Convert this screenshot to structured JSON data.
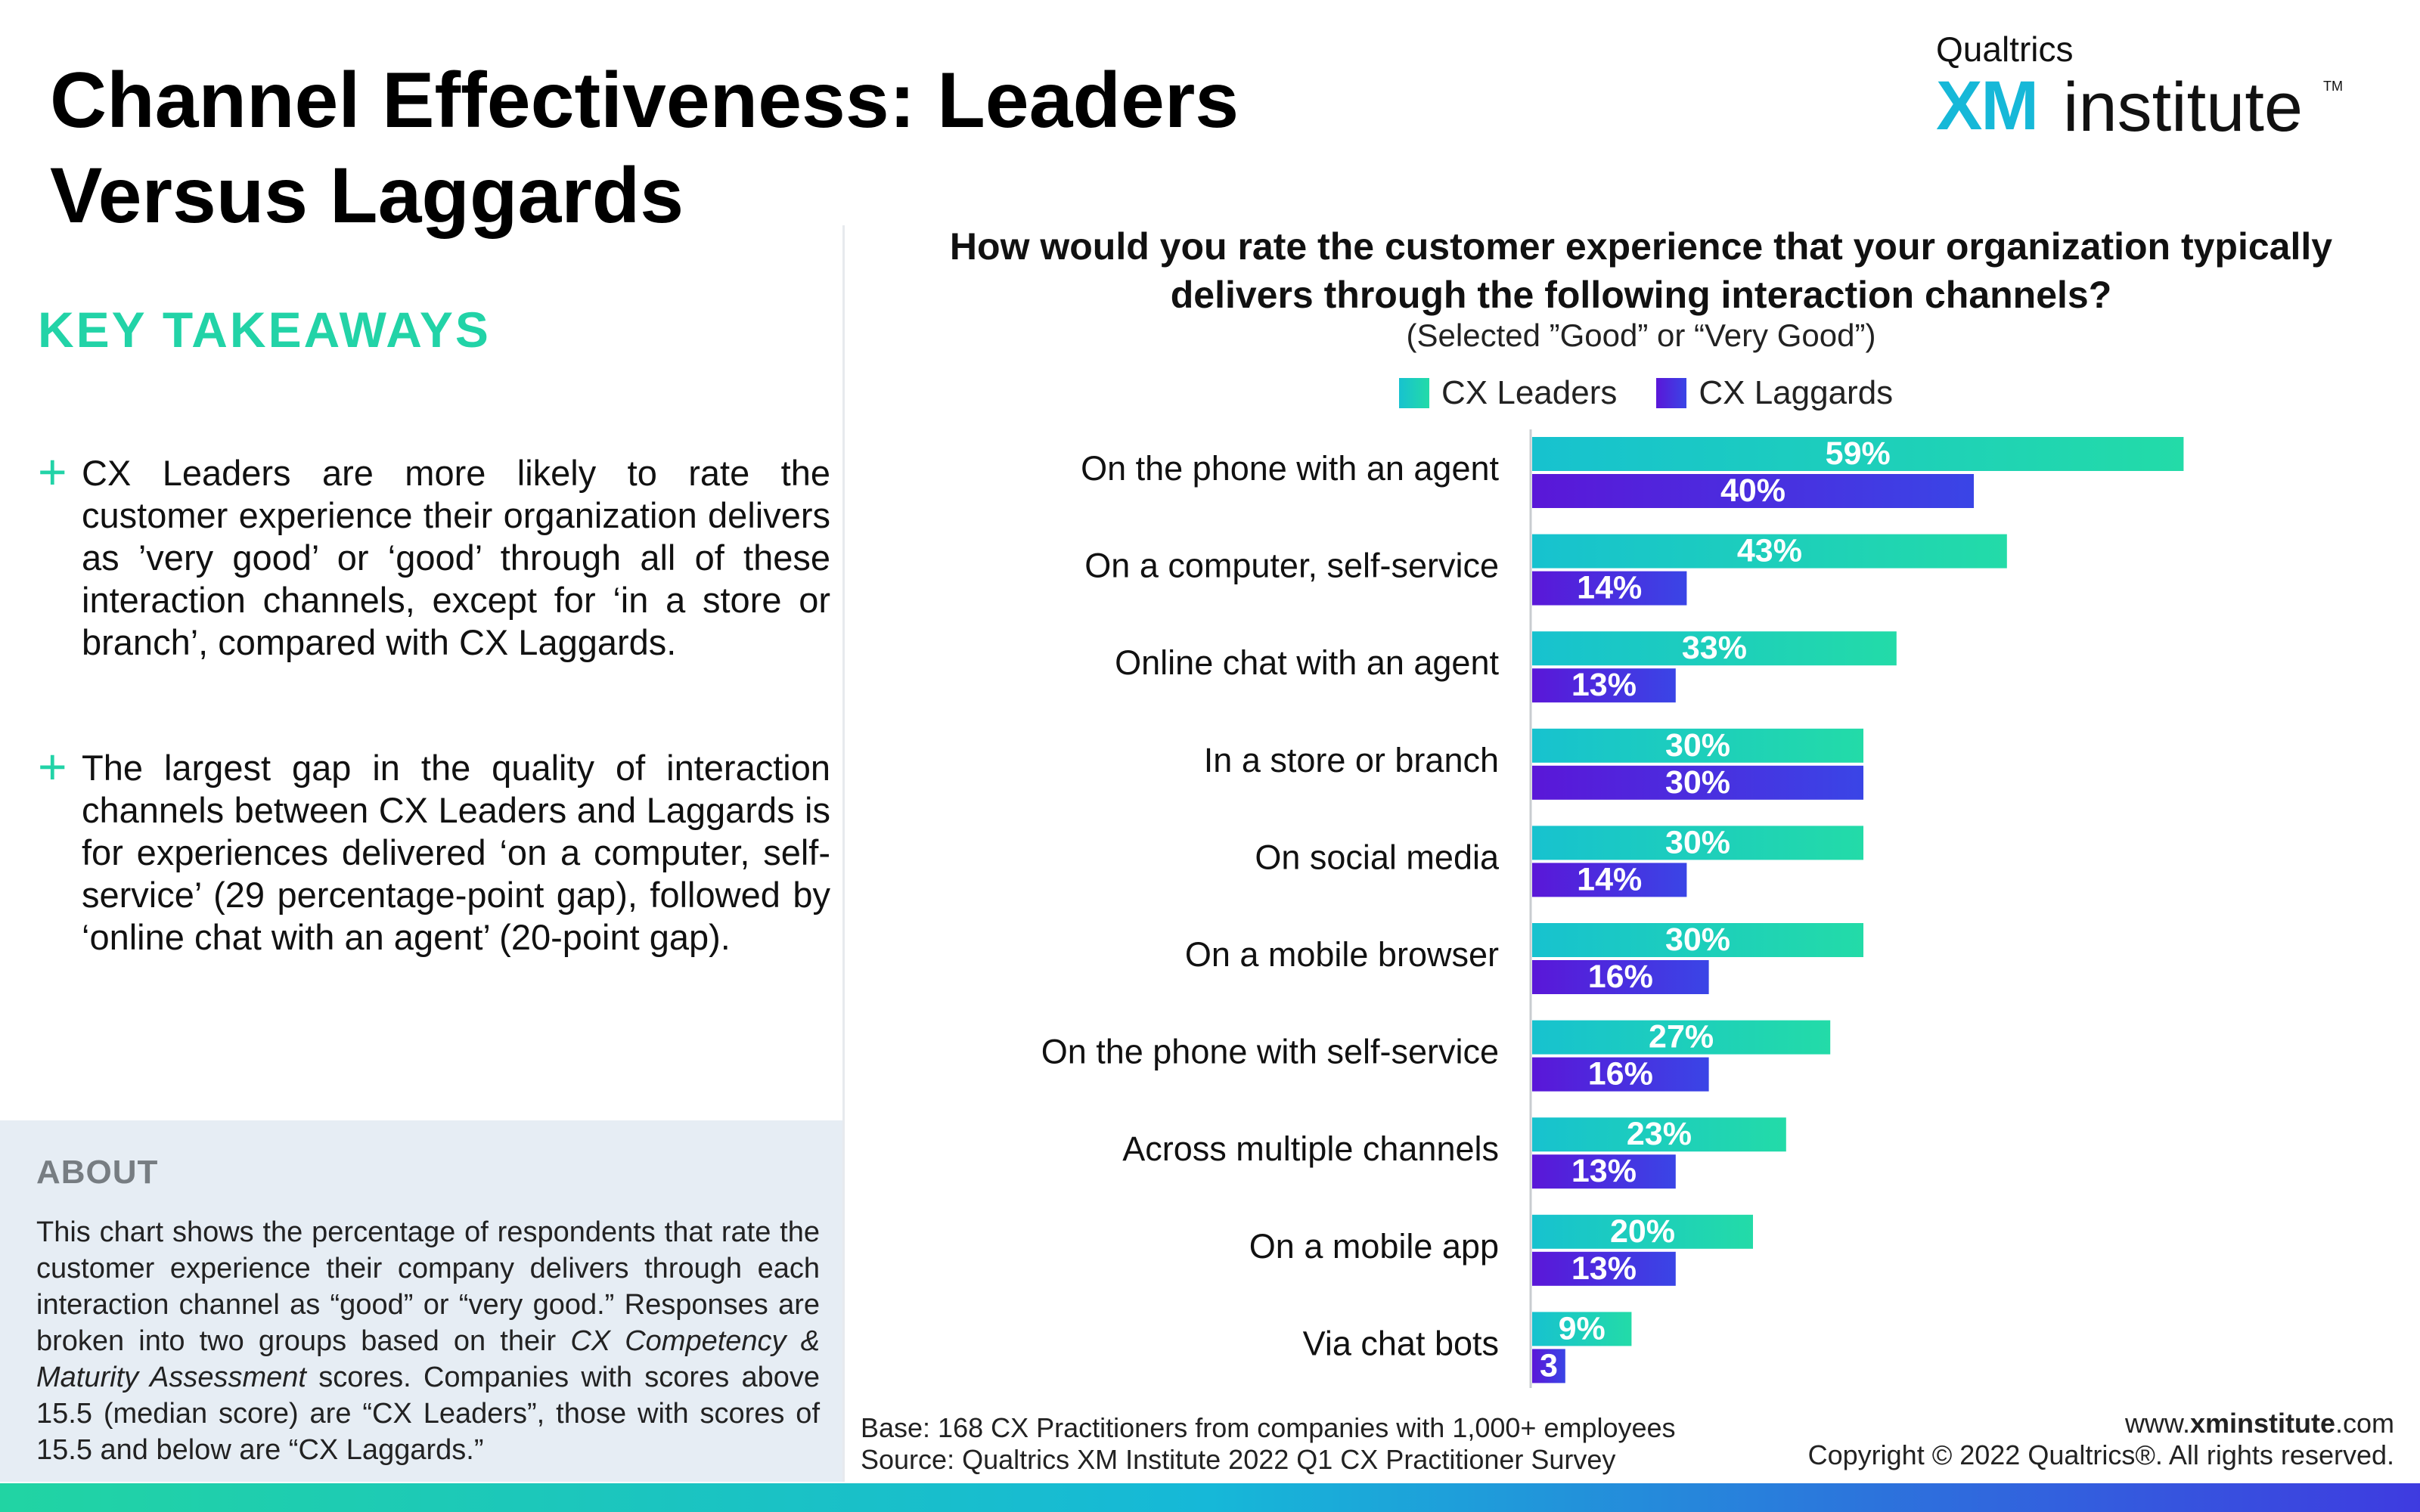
{
  "page": {
    "title": "Channel Effectiveness: Leaders Versus Laggards",
    "logo": {
      "brand": "Qualtrics",
      "name_bold": "XM",
      "name_light": "institute",
      "tm": "TM"
    }
  },
  "takeaways": {
    "heading": "KEY TAKEAWAYS",
    "items": [
      "CX Leaders are more likely to rate the customer experience their organization delivers as ’very good’ or ‘good’ through all of these interaction channels, except for ‘in a store or branch’, compared with CX Laggards.",
      "The largest gap in the quality of interaction channels between CX Leaders and Laggards is for experiences delivered ‘on a computer, self-service’ (29 percentage-point gap), followed by ‘online chat with an agent’ (20-point gap)."
    ]
  },
  "about": {
    "heading": "ABOUT",
    "text_before": "This chart shows the percentage of respondents that rate the customer experience their company delivers through each interaction channel as “good” or “very good.” Responses are broken into two groups based on their ",
    "text_italic": "CX Competency & Maturity Assessment",
    "text_after": " scores. Companies with scores above 15.5 (median score) are “CX Leaders”, those with scores of 15.5 and below are “CX Laggards.”"
  },
  "chart_data": {
    "type": "bar",
    "orientation": "horizontal",
    "title": "How would you rate the customer experience that your organization typically delivers through the following interaction channels?",
    "subtitle": "(Selected ”Good” or “Very Good”)",
    "categories": [
      "On the phone with an agent",
      "On a computer, self-service",
      "Online chat with an agent",
      "In a store or branch",
      "On social media",
      "On a mobile browser",
      "On the phone with self-service",
      "Across multiple channels",
      "On a mobile app",
      "Via chat bots"
    ],
    "series": [
      {
        "name": "CX Leaders",
        "values": [
          59,
          43,
          33,
          30,
          30,
          30,
          27,
          23,
          20,
          9
        ],
        "labels": [
          "59%",
          "43%",
          "33%",
          "30%",
          "30%",
          "30%",
          "27%",
          "23%",
          "20%",
          "9%"
        ],
        "color_start": "#17c2cf",
        "color_end": "#23dba8"
      },
      {
        "name": "CX Laggards",
        "values": [
          40,
          14,
          13,
          30,
          14,
          16,
          16,
          13,
          13,
          3
        ],
        "labels": [
          "40%",
          "14%",
          "13%",
          "30%",
          "14%",
          "16%",
          "16%",
          "13%",
          "13%",
          "3"
        ],
        "color_start": "#5a17d8",
        "color_end": "#3a45e6"
      }
    ],
    "xlim": [
      0,
      100
    ],
    "legend_position": "top",
    "grid": false
  },
  "footer": {
    "base": "Base: 168 CX Practitioners from companies with 1,000+ employees",
    "source": "Source: Qualtrics XM Institute 2022 Q1 CX Practitioner Survey",
    "url_prefix": "www.",
    "url_bold": "xminstitute",
    "url_suffix": ".com",
    "copyright": "Copyright © 2022 Qualtrics®. All rights reserved."
  }
}
